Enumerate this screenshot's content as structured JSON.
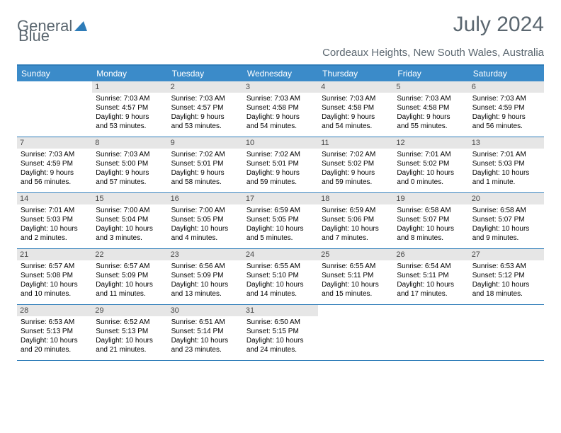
{
  "logo": {
    "part1": "General",
    "part2": "Blue"
  },
  "title": "July 2024",
  "location": "Cordeaux Heights, New South Wales, Australia",
  "colors": {
    "header_bg": "#3b8bc9",
    "header_text": "#ffffff",
    "border": "#2e7cb8",
    "daynum_bg": "#e6e6e6",
    "title_color": "#5b6770"
  },
  "day_headers": [
    "Sunday",
    "Monday",
    "Tuesday",
    "Wednesday",
    "Thursday",
    "Friday",
    "Saturday"
  ],
  "weeks": [
    [
      {
        "n": "",
        "sr": "",
        "ss": "",
        "dl1": "",
        "dl2": ""
      },
      {
        "n": "1",
        "sr": "Sunrise: 7:03 AM",
        "ss": "Sunset: 4:57 PM",
        "dl1": "Daylight: 9 hours",
        "dl2": "and 53 minutes."
      },
      {
        "n": "2",
        "sr": "Sunrise: 7:03 AM",
        "ss": "Sunset: 4:57 PM",
        "dl1": "Daylight: 9 hours",
        "dl2": "and 53 minutes."
      },
      {
        "n": "3",
        "sr": "Sunrise: 7:03 AM",
        "ss": "Sunset: 4:58 PM",
        "dl1": "Daylight: 9 hours",
        "dl2": "and 54 minutes."
      },
      {
        "n": "4",
        "sr": "Sunrise: 7:03 AM",
        "ss": "Sunset: 4:58 PM",
        "dl1": "Daylight: 9 hours",
        "dl2": "and 54 minutes."
      },
      {
        "n": "5",
        "sr": "Sunrise: 7:03 AM",
        "ss": "Sunset: 4:58 PM",
        "dl1": "Daylight: 9 hours",
        "dl2": "and 55 minutes."
      },
      {
        "n": "6",
        "sr": "Sunrise: 7:03 AM",
        "ss": "Sunset: 4:59 PM",
        "dl1": "Daylight: 9 hours",
        "dl2": "and 56 minutes."
      }
    ],
    [
      {
        "n": "7",
        "sr": "Sunrise: 7:03 AM",
        "ss": "Sunset: 4:59 PM",
        "dl1": "Daylight: 9 hours",
        "dl2": "and 56 minutes."
      },
      {
        "n": "8",
        "sr": "Sunrise: 7:03 AM",
        "ss": "Sunset: 5:00 PM",
        "dl1": "Daylight: 9 hours",
        "dl2": "and 57 minutes."
      },
      {
        "n": "9",
        "sr": "Sunrise: 7:02 AM",
        "ss": "Sunset: 5:01 PM",
        "dl1": "Daylight: 9 hours",
        "dl2": "and 58 minutes."
      },
      {
        "n": "10",
        "sr": "Sunrise: 7:02 AM",
        "ss": "Sunset: 5:01 PM",
        "dl1": "Daylight: 9 hours",
        "dl2": "and 59 minutes."
      },
      {
        "n": "11",
        "sr": "Sunrise: 7:02 AM",
        "ss": "Sunset: 5:02 PM",
        "dl1": "Daylight: 9 hours",
        "dl2": "and 59 minutes."
      },
      {
        "n": "12",
        "sr": "Sunrise: 7:01 AM",
        "ss": "Sunset: 5:02 PM",
        "dl1": "Daylight: 10 hours",
        "dl2": "and 0 minutes."
      },
      {
        "n": "13",
        "sr": "Sunrise: 7:01 AM",
        "ss": "Sunset: 5:03 PM",
        "dl1": "Daylight: 10 hours",
        "dl2": "and 1 minute."
      }
    ],
    [
      {
        "n": "14",
        "sr": "Sunrise: 7:01 AM",
        "ss": "Sunset: 5:03 PM",
        "dl1": "Daylight: 10 hours",
        "dl2": "and 2 minutes."
      },
      {
        "n": "15",
        "sr": "Sunrise: 7:00 AM",
        "ss": "Sunset: 5:04 PM",
        "dl1": "Daylight: 10 hours",
        "dl2": "and 3 minutes."
      },
      {
        "n": "16",
        "sr": "Sunrise: 7:00 AM",
        "ss": "Sunset: 5:05 PM",
        "dl1": "Daylight: 10 hours",
        "dl2": "and 4 minutes."
      },
      {
        "n": "17",
        "sr": "Sunrise: 6:59 AM",
        "ss": "Sunset: 5:05 PM",
        "dl1": "Daylight: 10 hours",
        "dl2": "and 5 minutes."
      },
      {
        "n": "18",
        "sr": "Sunrise: 6:59 AM",
        "ss": "Sunset: 5:06 PM",
        "dl1": "Daylight: 10 hours",
        "dl2": "and 7 minutes."
      },
      {
        "n": "19",
        "sr": "Sunrise: 6:58 AM",
        "ss": "Sunset: 5:07 PM",
        "dl1": "Daylight: 10 hours",
        "dl2": "and 8 minutes."
      },
      {
        "n": "20",
        "sr": "Sunrise: 6:58 AM",
        "ss": "Sunset: 5:07 PM",
        "dl1": "Daylight: 10 hours",
        "dl2": "and 9 minutes."
      }
    ],
    [
      {
        "n": "21",
        "sr": "Sunrise: 6:57 AM",
        "ss": "Sunset: 5:08 PM",
        "dl1": "Daylight: 10 hours",
        "dl2": "and 10 minutes."
      },
      {
        "n": "22",
        "sr": "Sunrise: 6:57 AM",
        "ss": "Sunset: 5:09 PM",
        "dl1": "Daylight: 10 hours",
        "dl2": "and 11 minutes."
      },
      {
        "n": "23",
        "sr": "Sunrise: 6:56 AM",
        "ss": "Sunset: 5:09 PM",
        "dl1": "Daylight: 10 hours",
        "dl2": "and 13 minutes."
      },
      {
        "n": "24",
        "sr": "Sunrise: 6:55 AM",
        "ss": "Sunset: 5:10 PM",
        "dl1": "Daylight: 10 hours",
        "dl2": "and 14 minutes."
      },
      {
        "n": "25",
        "sr": "Sunrise: 6:55 AM",
        "ss": "Sunset: 5:11 PM",
        "dl1": "Daylight: 10 hours",
        "dl2": "and 15 minutes."
      },
      {
        "n": "26",
        "sr": "Sunrise: 6:54 AM",
        "ss": "Sunset: 5:11 PM",
        "dl1": "Daylight: 10 hours",
        "dl2": "and 17 minutes."
      },
      {
        "n": "27",
        "sr": "Sunrise: 6:53 AM",
        "ss": "Sunset: 5:12 PM",
        "dl1": "Daylight: 10 hours",
        "dl2": "and 18 minutes."
      }
    ],
    [
      {
        "n": "28",
        "sr": "Sunrise: 6:53 AM",
        "ss": "Sunset: 5:13 PM",
        "dl1": "Daylight: 10 hours",
        "dl2": "and 20 minutes."
      },
      {
        "n": "29",
        "sr": "Sunrise: 6:52 AM",
        "ss": "Sunset: 5:13 PM",
        "dl1": "Daylight: 10 hours",
        "dl2": "and 21 minutes."
      },
      {
        "n": "30",
        "sr": "Sunrise: 6:51 AM",
        "ss": "Sunset: 5:14 PM",
        "dl1": "Daylight: 10 hours",
        "dl2": "and 23 minutes."
      },
      {
        "n": "31",
        "sr": "Sunrise: 6:50 AM",
        "ss": "Sunset: 5:15 PM",
        "dl1": "Daylight: 10 hours",
        "dl2": "and 24 minutes."
      },
      {
        "n": "",
        "sr": "",
        "ss": "",
        "dl1": "",
        "dl2": ""
      },
      {
        "n": "",
        "sr": "",
        "ss": "",
        "dl1": "",
        "dl2": ""
      },
      {
        "n": "",
        "sr": "",
        "ss": "",
        "dl1": "",
        "dl2": ""
      }
    ]
  ]
}
